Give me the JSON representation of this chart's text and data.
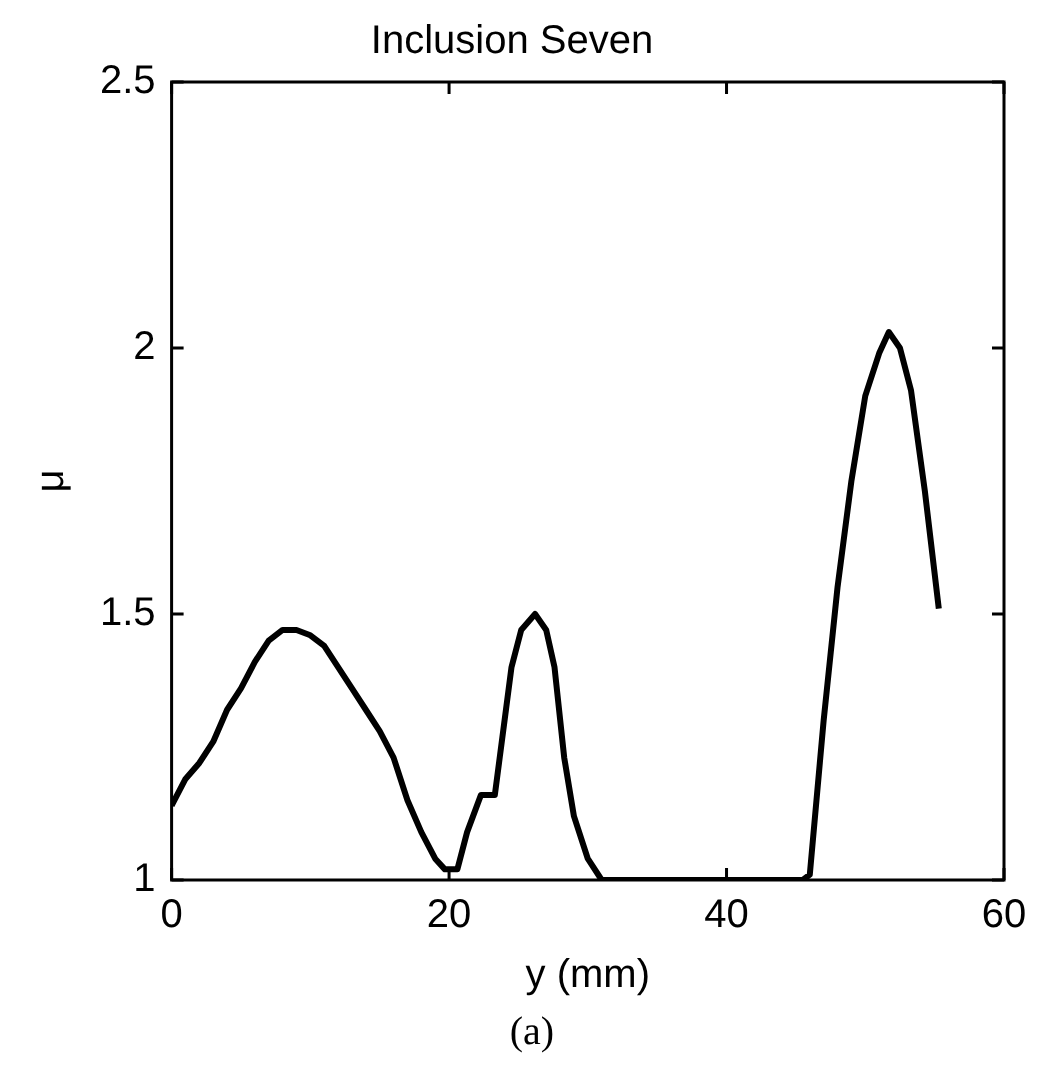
{
  "chart_data": {
    "type": "line",
    "title": "Inclusion Seven",
    "xlabel": "y (mm)",
    "ylabel": "μ",
    "annotations": [
      "(a)"
    ],
    "x": [
      0,
      1,
      2,
      3,
      4,
      5,
      6,
      7,
      8,
      9,
      10,
      11,
      12,
      13,
      14,
      15,
      16,
      17,
      18,
      19,
      19.7,
      20.6,
      21.3,
      22.3,
      23.3,
      24.5,
      25.2,
      26.2,
      27,
      27.6,
      28.3,
      29,
      30,
      31,
      45.5,
      46,
      47,
      48,
      49,
      50,
      51,
      51.7,
      52.5,
      53.3,
      54.3,
      55.3
    ],
    "series": [
      {
        "color": "#000000",
        "values": [
          1.14,
          1.19,
          1.22,
          1.26,
          1.32,
          1.36,
          1.41,
          1.45,
          1.47,
          1.47,
          1.46,
          1.44,
          1.4,
          1.36,
          1.32,
          1.28,
          1.23,
          1.15,
          1.09,
          1.04,
          1.02,
          1.02,
          1.09,
          1.16,
          1.16,
          1.4,
          1.47,
          1.5,
          1.47,
          1.4,
          1.23,
          1.12,
          1.04,
          1.0,
          1.0,
          1.01,
          1.3,
          1.55,
          1.75,
          1.91,
          1.99,
          2.03,
          2.0,
          1.92,
          1.73,
          1.51
        ]
      }
    ],
    "xlim": [
      0,
      60
    ],
    "xticks": [
      0,
      20,
      40,
      60
    ],
    "ylim": [
      1,
      2.5
    ],
    "yticks": [
      1,
      1.5,
      2,
      2.5
    ],
    "grid": false,
    "legend": false,
    "marker": "none",
    "line_style": "solid"
  }
}
